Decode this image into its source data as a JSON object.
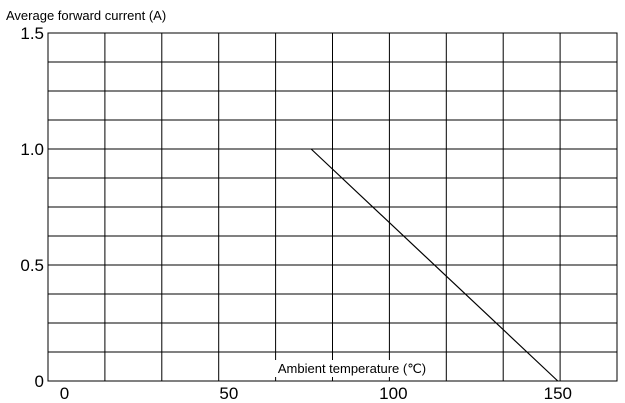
{
  "chart_data": {
    "type": "line",
    "title": "",
    "ylabel": "Average forward current (A)",
    "xlabel": "Ambient temperature (℃)",
    "xlim": [
      -5,
      168
    ],
    "ylim": [
      0,
      1.5
    ],
    "x_ticks": [
      0,
      50,
      100,
      150
    ],
    "x_tick_labels": [
      "0",
      "50",
      "100",
      "150"
    ],
    "y_ticks": [
      0,
      0.5,
      1.0,
      1.5
    ],
    "y_tick_labels": [
      "0",
      "0.5",
      "1.0",
      "1.5"
    ],
    "grid": true,
    "legend": "none",
    "series": [
      {
        "x": [
          75,
          150
        ],
        "y": [
          1.0,
          0
        ]
      }
    ]
  },
  "colors": {
    "line": "#000000",
    "grid": "#000000",
    "background": "#ffffff"
  }
}
